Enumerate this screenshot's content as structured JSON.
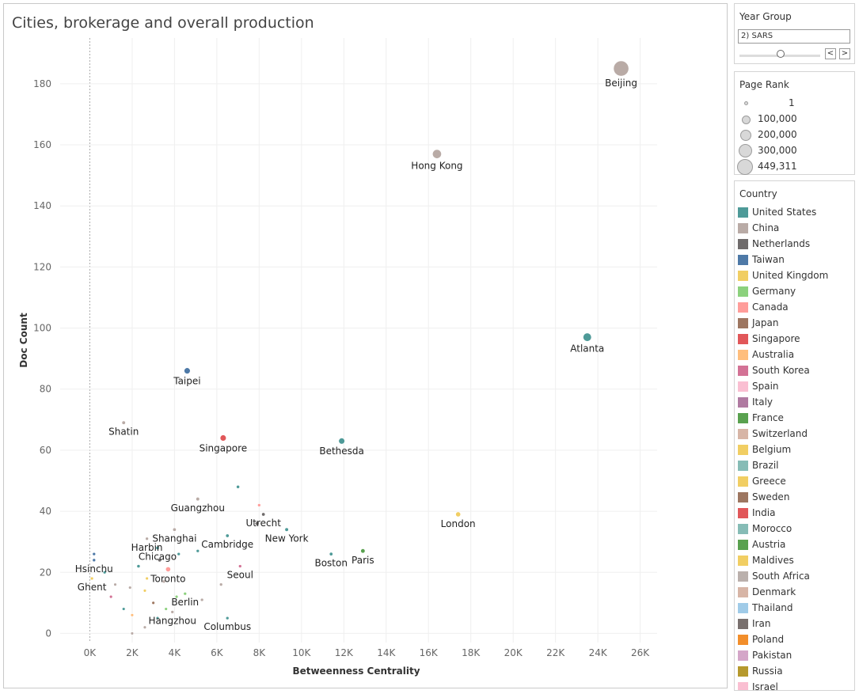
{
  "title": "Cities, brokerage and overall production",
  "filters": {
    "year_group": {
      "title": "Year Group",
      "value": "2) SARS",
      "prev": "<",
      "next": ">",
      "position": 0.5
    }
  },
  "page_rank_legend": {
    "title": "Page Rank",
    "items": [
      "1",
      "100,000",
      "200,000",
      "300,000",
      "449,311"
    ]
  },
  "country_legend": {
    "title": "Country",
    "items": [
      {
        "name": "United States",
        "color": "#4e9a98"
      },
      {
        "name": "China",
        "color": "#b9aba6"
      },
      {
        "name": "Netherlands",
        "color": "#6f6b6b"
      },
      {
        "name": "Taiwan",
        "color": "#4e79a7"
      },
      {
        "name": "United Kingdom",
        "color": "#f1ce63"
      },
      {
        "name": "Germany",
        "color": "#8cd17d"
      },
      {
        "name": "Canada",
        "color": "#ff9d9a"
      },
      {
        "name": "Japan",
        "color": "#9d7660"
      },
      {
        "name": "Singapore",
        "color": "#e15759"
      },
      {
        "name": "Australia",
        "color": "#ffbe7d"
      },
      {
        "name": "South Korea",
        "color": "#d37295"
      },
      {
        "name": "Spain",
        "color": "#fabfd2"
      },
      {
        "name": "Italy",
        "color": "#b07aa1"
      },
      {
        "name": "France",
        "color": "#59a14f"
      },
      {
        "name": "Switzerland",
        "color": "#d7b5a6"
      },
      {
        "name": "Belgium",
        "color": "#f1ce63"
      },
      {
        "name": "Brazil",
        "color": "#86bcb6"
      },
      {
        "name": "Greece",
        "color": "#f1ce63"
      },
      {
        "name": "Sweden",
        "color": "#9d7660"
      },
      {
        "name": "India",
        "color": "#e15759"
      },
      {
        "name": "Morocco",
        "color": "#86bcb6"
      },
      {
        "name": "Austria",
        "color": "#59a14f"
      },
      {
        "name": "Maldives",
        "color": "#f1ce63"
      },
      {
        "name": "South Africa",
        "color": "#bab0ac"
      },
      {
        "name": "Denmark",
        "color": "#d7b5a6"
      },
      {
        "name": "Thailand",
        "color": "#a0cbe8"
      },
      {
        "name": "Iran",
        "color": "#79706e"
      },
      {
        "name": "Poland",
        "color": "#f28e2b"
      },
      {
        "name": "Pakistan",
        "color": "#d4a6c8"
      },
      {
        "name": "Russia",
        "color": "#b6992d"
      },
      {
        "name": "Israel",
        "color": "#fabfd2"
      }
    ]
  },
  "chart_data": {
    "type": "scatter",
    "title": "Cities, brokerage and overall production",
    "xlabel": "Betweenness Centrality",
    "ylabel": "Doc Count",
    "xlim": [
      -1400,
      26800
    ],
    "ylim": [
      -3,
      195
    ],
    "x_ticks": [
      0,
      2000,
      4000,
      6000,
      8000,
      10000,
      12000,
      14000,
      16000,
      18000,
      20000,
      22000,
      24000,
      26000
    ],
    "x_tick_labels": [
      "0K",
      "2K",
      "4K",
      "6K",
      "8K",
      "10K",
      "12K",
      "14K",
      "16K",
      "18K",
      "20K",
      "22K",
      "24K",
      "26K"
    ],
    "y_ticks": [
      0,
      20,
      40,
      60,
      80,
      100,
      120,
      140,
      160,
      180
    ],
    "y_tick_labels": [
      "0",
      "20",
      "40",
      "60",
      "80",
      "100",
      "120",
      "140",
      "160",
      "180"
    ],
    "grid": true,
    "points": [
      {
        "city": "Beijing",
        "country": "China",
        "x": 25100,
        "y": 185,
        "rank": 449311
      },
      {
        "city": "Hong Kong",
        "country": "China",
        "x": 16400,
        "y": 157,
        "rank": 120000
      },
      {
        "city": "Atlanta",
        "country": "United States",
        "x": 23500,
        "y": 97,
        "rank": 100000
      },
      {
        "city": "Taipei",
        "country": "Taiwan",
        "x": 4600,
        "y": 86,
        "rank": 40000
      },
      {
        "city": "Shatin",
        "country": "China",
        "x": 1600,
        "y": 69,
        "rank": 5000
      },
      {
        "city": "Singapore",
        "country": "Singapore",
        "x": 6300,
        "y": 64,
        "rank": 40000
      },
      {
        "city": "Bethesda",
        "country": "United States",
        "x": 11900,
        "y": 63,
        "rank": 40000
      },
      {
        "city": "Guangzhou",
        "country": "China",
        "x": 5100,
        "y": 44,
        "rank": 5000
      },
      {
        "city": "Utrecht",
        "country": "Netherlands",
        "x": 8200,
        "y": 39,
        "rank": 4000
      },
      {
        "city": "London",
        "country": "United Kingdom",
        "x": 17400,
        "y": 39,
        "rank": 20000
      },
      {
        "city": "Shanghai",
        "country": "China",
        "x": 4000,
        "y": 34,
        "rank": 4000
      },
      {
        "city": "New York",
        "country": "United States",
        "x": 9300,
        "y": 34,
        "rank": 5000
      },
      {
        "city": "Harbin",
        "country": "China",
        "x": 2700,
        "y": 31,
        "rank": 2000
      },
      {
        "city": "Cambridge",
        "country": "United States",
        "x": 6500,
        "y": 32,
        "rank": 4000
      },
      {
        "city": "Chicago",
        "country": "United States",
        "x": 3200,
        "y": 28,
        "rank": 4000
      },
      {
        "city": "Paris",
        "country": "France",
        "x": 12900,
        "y": 27,
        "rank": 12000
      },
      {
        "city": "Boston",
        "country": "United States",
        "x": 11400,
        "y": 26,
        "rank": 4000
      },
      {
        "city": "Hsinchu",
        "country": "Taiwan",
        "x": 200,
        "y": 24,
        "rank": 2000
      },
      {
        "city": "Toronto",
        "country": "Canada",
        "x": 3700,
        "y": 21,
        "rank": 20000
      },
      {
        "city": "Seoul",
        "country": "South Korea",
        "x": 7100,
        "y": 22,
        "rank": 2000
      },
      {
        "city": "Ghent",
        "country": "Belgium",
        "x": 100,
        "y": 18,
        "rank": 2000
      },
      {
        "city": "Berlin",
        "country": "Germany",
        "x": 4500,
        "y": 13,
        "rank": 2000
      },
      {
        "city": "Hangzhou",
        "country": "China",
        "x": 3900,
        "y": 7,
        "rank": 2000
      },
      {
        "city": "Columbus",
        "country": "United States",
        "x": 6500,
        "y": 5,
        "rank": 2000
      },
      {
        "city": "",
        "country": "United States",
        "x": 7000,
        "y": 48,
        "rank": 3000
      },
      {
        "city": "",
        "country": "Canada",
        "x": 8000,
        "y": 42,
        "rank": 2000
      },
      {
        "city": "",
        "country": "Netherlands",
        "x": 7900,
        "y": 36,
        "rank": 8000
      },
      {
        "city": "",
        "country": "Netherlands",
        "x": 3300,
        "y": 24,
        "rank": 4000
      },
      {
        "city": "",
        "country": "United States",
        "x": 5100,
        "y": 27,
        "rank": 2000
      },
      {
        "city": "",
        "country": "United States",
        "x": 4200,
        "y": 26,
        "rank": 2000
      },
      {
        "city": "",
        "country": "United States",
        "x": 2300,
        "y": 22,
        "rank": 3000
      },
      {
        "city": "",
        "country": "United States",
        "x": 700,
        "y": 20,
        "rank": 2000
      },
      {
        "city": "",
        "country": "Taiwan",
        "x": 200,
        "y": 26,
        "rank": 2000
      },
      {
        "city": "",
        "country": "China",
        "x": 3500,
        "y": 17,
        "rank": 2000
      },
      {
        "city": "",
        "country": "China",
        "x": 5300,
        "y": 11,
        "rank": 2000
      },
      {
        "city": "",
        "country": "China",
        "x": 6200,
        "y": 16,
        "rank": 2000
      },
      {
        "city": "",
        "country": "China",
        "x": 1200,
        "y": 16,
        "rank": 1500
      },
      {
        "city": "",
        "country": "United Kingdom",
        "x": 2700,
        "y": 18,
        "rank": 1500
      },
      {
        "city": "",
        "country": "United Kingdom",
        "x": 2600,
        "y": 14,
        "rank": 1500
      },
      {
        "city": "",
        "country": "Germany",
        "x": 4100,
        "y": 12,
        "rank": 1500
      },
      {
        "city": "",
        "country": "Germany",
        "x": 3600,
        "y": 8,
        "rank": 1500
      },
      {
        "city": "",
        "country": "Japan",
        "x": 3000,
        "y": 10,
        "rank": 1500
      },
      {
        "city": "",
        "country": "Australia",
        "x": 2000,
        "y": 6,
        "rank": 1500
      },
      {
        "city": "",
        "country": "South Korea",
        "x": 1000,
        "y": 12,
        "rank": 1500
      },
      {
        "city": "",
        "country": "China",
        "x": 1900,
        "y": 15,
        "rank": 1500
      },
      {
        "city": "",
        "country": "United States",
        "x": 1600,
        "y": 8,
        "rank": 1500
      },
      {
        "city": "",
        "country": "China",
        "x": 2600,
        "y": 2,
        "rank": 1500
      },
      {
        "city": "",
        "country": "United States",
        "x": 3200,
        "y": 5,
        "rank": 1500
      },
      {
        "city": "",
        "country": "China",
        "x": 2000,
        "y": 0,
        "rank": 1500
      }
    ]
  }
}
